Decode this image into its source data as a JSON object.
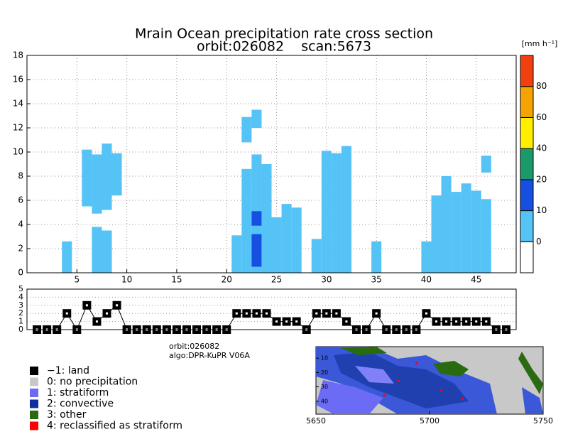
{
  "chart_data": [
    {
      "type": "section",
      "title": "Mrain Ocean precipitation rate cross section",
      "subtitle": "orbit:026082    scan:5673",
      "xlim": [
        0,
        49
      ],
      "xticks": [
        5,
        10,
        15,
        20,
        25,
        30,
        35,
        40,
        45
      ],
      "ylim": [
        0,
        18
      ],
      "yticks": [
        0,
        2,
        4,
        6,
        8,
        10,
        12,
        14,
        16,
        18
      ],
      "grid": true,
      "columns": {
        "x": [
          4,
          6,
          7,
          7,
          8,
          8,
          9,
          21,
          22,
          22,
          23,
          23,
          23,
          23,
          24,
          25,
          26,
          27,
          29,
          30,
          31,
          32,
          35,
          40,
          41,
          42,
          43,
          44,
          45,
          46,
          46
        ],
        "bottom": [
          0,
          5.5,
          4.9,
          0,
          5.2,
          0,
          6.4,
          0,
          10.8,
          0,
          12,
          0,
          0.5,
          3.9,
          0,
          0,
          0,
          0,
          0,
          0,
          0,
          0,
          0,
          0,
          0,
          0,
          0,
          0,
          0,
          0,
          8.3
        ],
        "top": [
          2.6,
          10.2,
          9.8,
          3.8,
          10.7,
          3.5,
          9.9,
          3.1,
          12.9,
          8.6,
          13.5,
          9.8,
          3.2,
          5.1,
          9.0,
          4.6,
          5.7,
          5.4,
          2.8,
          10.1,
          9.9,
          10.5,
          2.6,
          2.6,
          6.4,
          8.0,
          6.7,
          7.4,
          6.8,
          6.1,
          9.7
        ],
        "rate": [
          5,
          5,
          5,
          5,
          5,
          5,
          5,
          5,
          5,
          5,
          5,
          5,
          15,
          15,
          5,
          5,
          5,
          5,
          5,
          5,
          5,
          5,
          5,
          5,
          5,
          5,
          5,
          5,
          5,
          5,
          5
        ]
      },
      "colorbar": {
        "label": "[mm h⁻¹]",
        "levels": [
          0,
          10,
          20,
          40,
          60,
          80
        ],
        "colors": [
          "#ffffff",
          "#55c3f5",
          "#1650e0",
          "#1a9a6a",
          "#ffee00",
          "#f5a300",
          "#f04010"
        ]
      }
    },
    {
      "type": "line",
      "x": [
        1,
        2,
        3,
        4,
        5,
        6,
        7,
        8,
        9,
        10,
        11,
        12,
        13,
        14,
        15,
        16,
        17,
        18,
        19,
        20,
        21,
        22,
        23,
        24,
        25,
        26,
        27,
        28,
        29,
        30,
        31,
        32,
        33,
        34,
        35,
        36,
        37,
        38,
        39,
        40,
        41,
        42,
        43,
        44,
        45,
        46,
        47,
        48
      ],
      "values": [
        0,
        0,
        0,
        2,
        0,
        3,
        1,
        2,
        3,
        0,
        0,
        0,
        0,
        0,
        0,
        0,
        0,
        0,
        0,
        0,
        2,
        2,
        2,
        2,
        1,
        1,
        1,
        0,
        2,
        2,
        2,
        1,
        0,
        0,
        2,
        0,
        0,
        0,
        0,
        2,
        1,
        1,
        1,
        1,
        1,
        1,
        0,
        0
      ],
      "xlim": [
        0,
        49
      ],
      "ylim": [
        0,
        5
      ],
      "yticks": [
        0,
        1,
        2,
        3,
        4,
        5
      ],
      "grid": true,
      "color": "#000000"
    },
    {
      "type": "map",
      "xlim": [
        5650,
        5750
      ],
      "xticks": [
        5650,
        5700,
        5750
      ],
      "ylim": [
        2,
        49
      ],
      "yticks": [
        10,
        20,
        30,
        40
      ]
    }
  ],
  "info": [
    "orbit:026082",
    "algo:DPR-KuPR V06A"
  ],
  "legend": [
    {
      "label": "−1: land",
      "color": "#000000"
    },
    {
      "label": "0: no precipitation",
      "color": "#c8c8c8"
    },
    {
      "label": "1: stratiform",
      "color": "#6b6bf5"
    },
    {
      "label": "2: convective",
      "color": "#1030a0"
    },
    {
      "label": "3: other",
      "color": "#2a6a10"
    },
    {
      "label": "4: reclassified as stratiform",
      "color": "#ff0000"
    }
  ]
}
